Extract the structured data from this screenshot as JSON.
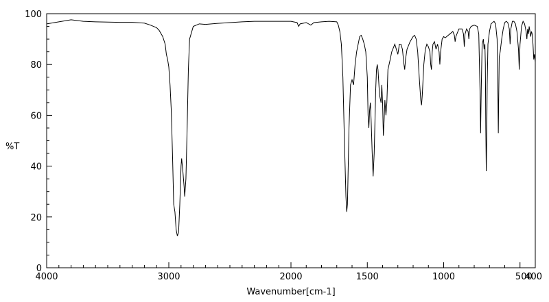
{
  "chart_data": {
    "type": "line",
    "title": "",
    "xlabel": "Wavenumber[cm-1]",
    "ylabel": "%T",
    "xlim": [
      4000,
      400
    ],
    "ylim": [
      0,
      100
    ],
    "x_reversed": true,
    "grid": false,
    "line_color": "#000000",
    "x_ticks": [
      4000,
      3000,
      2000,
      1500,
      1000,
      500,
      400
    ],
    "x_tick_labels": [
      "4000",
      "3000",
      "2000",
      "1500",
      "1000",
      "500",
      "400"
    ],
    "y_ticks": [
      0,
      20,
      40,
      60,
      80,
      100
    ],
    "y_tick_labels": [
      "0",
      "20",
      "40",
      "60",
      "80",
      "100"
    ],
    "series": [
      {
        "points": [
          [
            4000,
            96.0
          ],
          [
            3900,
            96.8
          ],
          [
            3800,
            97.6
          ],
          [
            3700,
            97.0
          ],
          [
            3600,
            96.8
          ],
          [
            3500,
            96.7
          ],
          [
            3400,
            96.6
          ],
          [
            3300,
            96.6
          ],
          [
            3200,
            96.3
          ],
          [
            3150,
            95.5
          ],
          [
            3100,
            94.5
          ],
          [
            3080,
            93.5
          ],
          [
            3050,
            91.0
          ],
          [
            3030,
            88.0
          ],
          [
            3020,
            84.0
          ],
          [
            3010,
            82.0
          ],
          [
            3000,
            79.0
          ],
          [
            2990,
            72.0
          ],
          [
            2980,
            62.0
          ],
          [
            2970,
            45.0
          ],
          [
            2960,
            25.0
          ],
          [
            2950,
            22.0
          ],
          [
            2940,
            15.0
          ],
          [
            2930,
            12.5
          ],
          [
            2920,
            14.0
          ],
          [
            2910,
            25.0
          ],
          [
            2900,
            40.0
          ],
          [
            2895,
            43.0
          ],
          [
            2885,
            38.0
          ],
          [
            2875,
            32.0
          ],
          [
            2870,
            28.0
          ],
          [
            2860,
            35.0
          ],
          [
            2850,
            55.0
          ],
          [
            2840,
            78.0
          ],
          [
            2830,
            90.0
          ],
          [
            2800,
            95.0
          ],
          [
            2750,
            96.0
          ],
          [
            2700,
            95.8
          ],
          [
            2600,
            96.2
          ],
          [
            2500,
            96.5
          ],
          [
            2400,
            96.8
          ],
          [
            2300,
            97.0
          ],
          [
            2200,
            97.0
          ],
          [
            2100,
            97.0
          ],
          [
            2000,
            97.0
          ],
          [
            1960,
            96.5
          ],
          [
            1950,
            95.0
          ],
          [
            1940,
            96.0
          ],
          [
            1900,
            96.5
          ],
          [
            1870,
            95.5
          ],
          [
            1850,
            96.5
          ],
          [
            1800,
            96.8
          ],
          [
            1750,
            97.0
          ],
          [
            1700,
            96.8
          ],
          [
            1690,
            95.5
          ],
          [
            1680,
            93.0
          ],
          [
            1670,
            88.0
          ],
          [
            1660,
            75.0
          ],
          [
            1650,
            50.0
          ],
          [
            1640,
            28.0
          ],
          [
            1635,
            22.0
          ],
          [
            1630,
            25.0
          ],
          [
            1620,
            55.0
          ],
          [
            1610,
            72.0
          ],
          [
            1600,
            74.0
          ],
          [
            1590,
            72.0
          ],
          [
            1580,
            80.0
          ],
          [
            1570,
            85.0
          ],
          [
            1560,
            88.0
          ],
          [
            1550,
            91.0
          ],
          [
            1540,
            91.5
          ],
          [
            1530,
            90.0
          ],
          [
            1520,
            88.0
          ],
          [
            1510,
            85.0
          ],
          [
            1500,
            75.0
          ],
          [
            1495,
            60.0
          ],
          [
            1490,
            55.0
          ],
          [
            1485,
            62.0
          ],
          [
            1480,
            65.0
          ],
          [
            1475,
            58.0
          ],
          [
            1468,
            45.0
          ],
          [
            1462,
            36.0
          ],
          [
            1455,
            45.0
          ],
          [
            1445,
            70.0
          ],
          [
            1440,
            78.0
          ],
          [
            1435,
            80.0
          ],
          [
            1430,
            78.0
          ],
          [
            1420,
            68.0
          ],
          [
            1410,
            65.0
          ],
          [
            1405,
            72.0
          ],
          [
            1400,
            65.0
          ],
          [
            1395,
            52.0
          ],
          [
            1390,
            58.0
          ],
          [
            1385,
            66.0
          ],
          [
            1378,
            60.0
          ],
          [
            1372,
            65.0
          ],
          [
            1365,
            78.0
          ],
          [
            1350,
            82.0
          ],
          [
            1340,
            85.0
          ],
          [
            1320,
            88.0
          ],
          [
            1310,
            86.0
          ],
          [
            1300,
            84.0
          ],
          [
            1290,
            88.0
          ],
          [
            1280,
            88.0
          ],
          [
            1270,
            86.0
          ],
          [
            1260,
            80.0
          ],
          [
            1255,
            78.0
          ],
          [
            1250,
            82.0
          ],
          [
            1240,
            86.0
          ],
          [
            1220,
            89.0
          ],
          [
            1200,
            91.0
          ],
          [
            1190,
            91.5
          ],
          [
            1180,
            90.0
          ],
          [
            1170,
            85.0
          ],
          [
            1160,
            75.0
          ],
          [
            1150,
            66.0
          ],
          [
            1145,
            64.0
          ],
          [
            1140,
            68.0
          ],
          [
            1130,
            80.0
          ],
          [
            1120,
            86.0
          ],
          [
            1110,
            88.0
          ],
          [
            1100,
            87.0
          ],
          [
            1090,
            85.0
          ],
          [
            1085,
            80.0
          ],
          [
            1080,
            78.0
          ],
          [
            1075,
            85.0
          ],
          [
            1070,
            88.0
          ],
          [
            1060,
            89.0
          ],
          [
            1050,
            86.0
          ],
          [
            1040,
            88.0
          ],
          [
            1030,
            85.0
          ],
          [
            1025,
            80.0
          ],
          [
            1020,
            85.0
          ],
          [
            1010,
            90.0
          ],
          [
            1000,
            91.0
          ],
          [
            990,
            90.5
          ],
          [
            980,
            91.0
          ],
          [
            960,
            92.0
          ],
          [
            940,
            93.0
          ],
          [
            930,
            91.5
          ],
          [
            925,
            89.0
          ],
          [
            920,
            91.0
          ],
          [
            910,
            92.5
          ],
          [
            900,
            94.0
          ],
          [
            880,
            94.0
          ],
          [
            870,
            92.0
          ],
          [
            865,
            87.0
          ],
          [
            860,
            92.0
          ],
          [
            850,
            94.0
          ],
          [
            840,
            93.0
          ],
          [
            835,
            90.0
          ],
          [
            830,
            94.0
          ],
          [
            820,
            95.0
          ],
          [
            800,
            95.5
          ],
          [
            780,
            95.0
          ],
          [
            770,
            92.0
          ],
          [
            762,
            70.0
          ],
          [
            758,
            53.0
          ],
          [
            754,
            70.0
          ],
          [
            748,
            88.0
          ],
          [
            740,
            90.0
          ],
          [
            735,
            86.0
          ],
          [
            730,
            88.0
          ],
          [
            727,
            80.0
          ],
          [
            724,
            55.0
          ],
          [
            721,
            38.0
          ],
          [
            718,
            50.0
          ],
          [
            715,
            72.0
          ],
          [
            710,
            88.0
          ],
          [
            700,
            93.0
          ],
          [
            690,
            96.0
          ],
          [
            680,
            96.5
          ],
          [
            670,
            97.0
          ],
          [
            660,
            96.0
          ],
          [
            650,
            90.0
          ],
          [
            645,
            70.0
          ],
          [
            642,
            53.0
          ],
          [
            639,
            70.0
          ],
          [
            636,
            83.0
          ],
          [
            630,
            85.0
          ],
          [
            620,
            90.0
          ],
          [
            610,
            94.0
          ],
          [
            600,
            96.5
          ],
          [
            590,
            97.0
          ],
          [
            580,
            96.5
          ],
          [
            570,
            94.0
          ],
          [
            565,
            88.0
          ],
          [
            560,
            94.0
          ],
          [
            550,
            97.0
          ],
          [
            540,
            97.0
          ],
          [
            530,
            96.0
          ],
          [
            520,
            93.0
          ],
          [
            510,
            86.0
          ],
          [
            505,
            78.0
          ],
          [
            500,
            88.0
          ],
          [
            490,
            95.0
          ],
          [
            480,
            97.0
          ],
          [
            470,
            96.0
          ],
          [
            460,
            93.0
          ],
          [
            455,
            90.0
          ],
          [
            450,
            94.0
          ],
          [
            445,
            92.0
          ],
          [
            440,
            95.0
          ],
          [
            435,
            93.0
          ],
          [
            430,
            91.0
          ],
          [
            425,
            93.0
          ],
          [
            420,
            92.0
          ],
          [
            415,
            88.0
          ],
          [
            410,
            82.0
          ],
          [
            405,
            84.0
          ],
          [
            400,
            81.0
          ]
        ]
      }
    ]
  }
}
